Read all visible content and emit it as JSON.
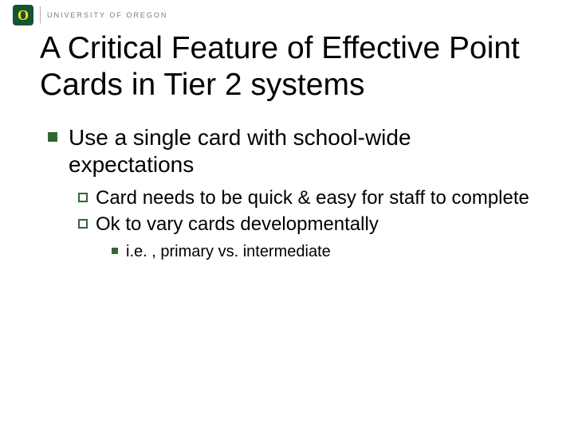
{
  "logo": {
    "letter": "O",
    "org_text": "UNIVERSITY OF OREGON",
    "badge_bg": "#14542f",
    "badge_fg": "#fee11a",
    "org_text_color": "#7a7a6a"
  },
  "title": "A Critical Feature of Effective Point Cards in Tier 2 systems",
  "title_fontsize": 39,
  "title_color": "#000000",
  "bullet_color": "#336633",
  "background_color": "#ffffff",
  "body": {
    "lvl1_fontsize": 28,
    "lvl2_fontsize": 24,
    "lvl3_fontsize": 20,
    "items": [
      {
        "text": "Use a single card with school-wide expectations",
        "children": [
          {
            "text": "Card needs to be quick & easy for staff to complete"
          },
          {
            "text": "Ok to vary cards developmentally",
            "children": [
              {
                "text": "i.e. , primary vs. intermediate"
              }
            ]
          }
        ]
      }
    ]
  }
}
